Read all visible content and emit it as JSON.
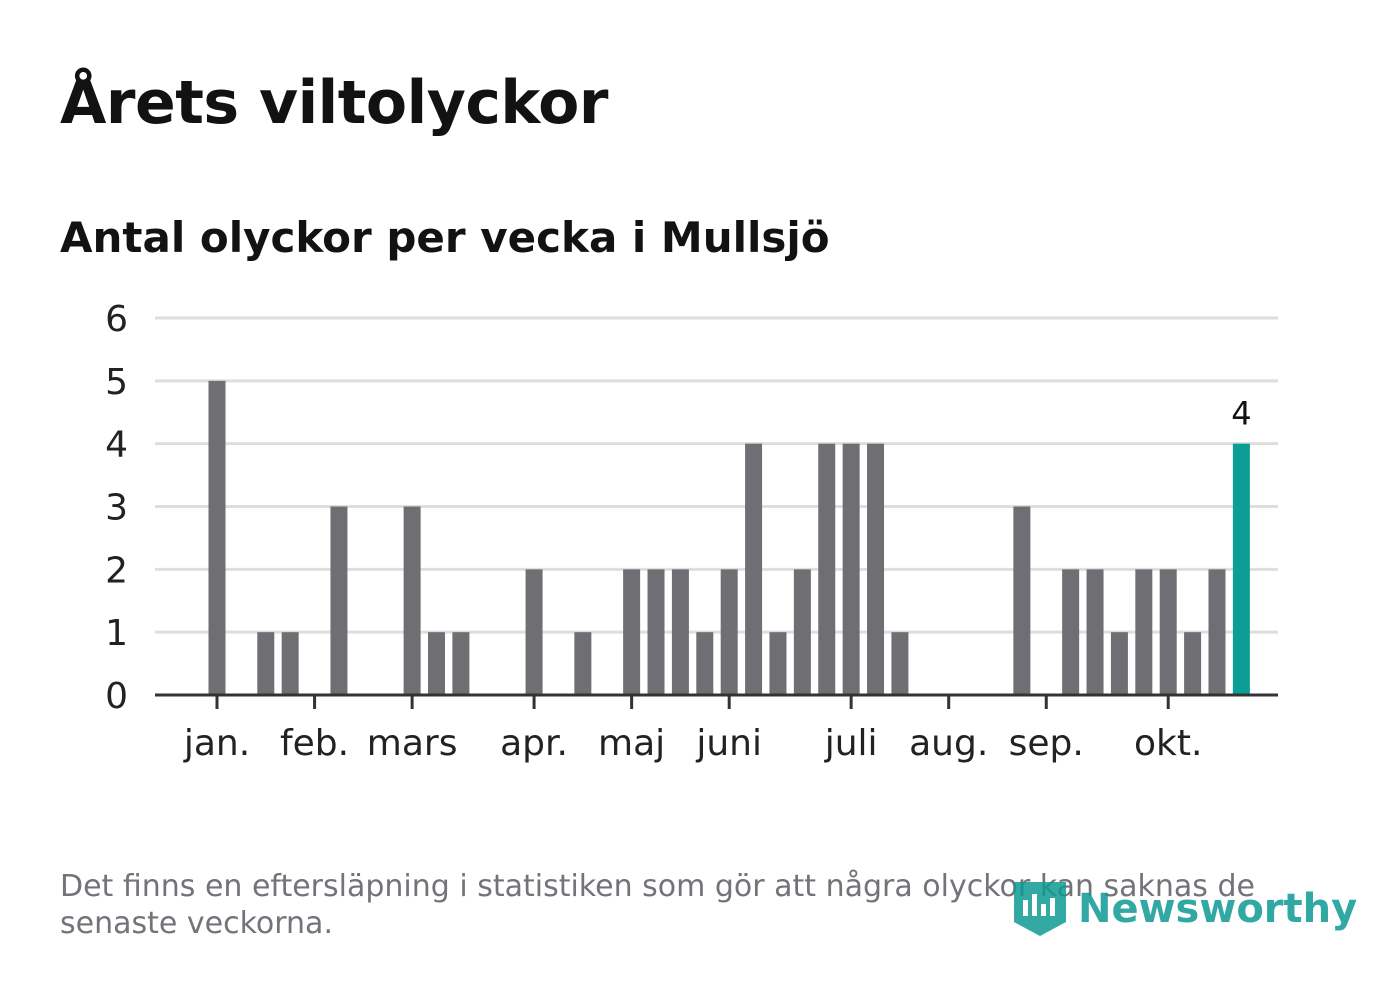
{
  "title": "Årets viltolyckor",
  "subtitle": "Antal olyckor per vecka i Mullsjö",
  "footnote": "Det finns en eftersläpning i statistiken som gör att några olyckor kan saknas de senaste veckorna.",
  "logo": {
    "text": "Newsworthy",
    "icon": "newsworthy-logo-icon"
  },
  "colors": {
    "bar": "#6f6e73",
    "highlight": "#0a9e95",
    "grid": "#dedede",
    "axis": "#333333",
    "text": "#222222"
  },
  "chart_data": {
    "type": "bar",
    "title": "Antal olyckor per vecka i Mullsjö",
    "xlabel": "",
    "ylabel": "",
    "ylim": [
      0,
      6
    ],
    "yticks": [
      0,
      1,
      2,
      3,
      4,
      5,
      6
    ],
    "grid": true,
    "x": [
      1,
      2,
      3,
      4,
      5,
      6,
      7,
      8,
      9,
      10,
      11,
      12,
      13,
      14,
      15,
      16,
      17,
      18,
      19,
      20,
      21,
      22,
      23,
      24,
      25,
      26,
      27,
      28,
      29,
      30,
      31,
      32,
      33,
      34,
      35,
      36,
      37,
      38,
      39,
      40,
      41,
      42
    ],
    "values": [
      5,
      0,
      1,
      1,
      0,
      3,
      0,
      0,
      3,
      1,
      1,
      0,
      0,
      2,
      0,
      1,
      0,
      2,
      2,
      2,
      1,
      2,
      4,
      1,
      2,
      4,
      4,
      4,
      1,
      0,
      0,
      0,
      0,
      3,
      0,
      2,
      2,
      1,
      2,
      2,
      1,
      2
    ],
    "highlight": {
      "x": 43,
      "value": 4,
      "label": "4"
    },
    "month_ticks": [
      {
        "label": "jan.",
        "x": 1
      },
      {
        "label": "feb.",
        "x": 5
      },
      {
        "label": "mars",
        "x": 9
      },
      {
        "label": "apr.",
        "x": 14
      },
      {
        "label": "maj",
        "x": 18
      },
      {
        "label": "juni",
        "x": 22
      },
      {
        "label": "juli",
        "x": 27
      },
      {
        "label": "aug.",
        "x": 31
      },
      {
        "label": "sep.",
        "x": 35
      },
      {
        "label": "okt.",
        "x": 40
      }
    ]
  }
}
